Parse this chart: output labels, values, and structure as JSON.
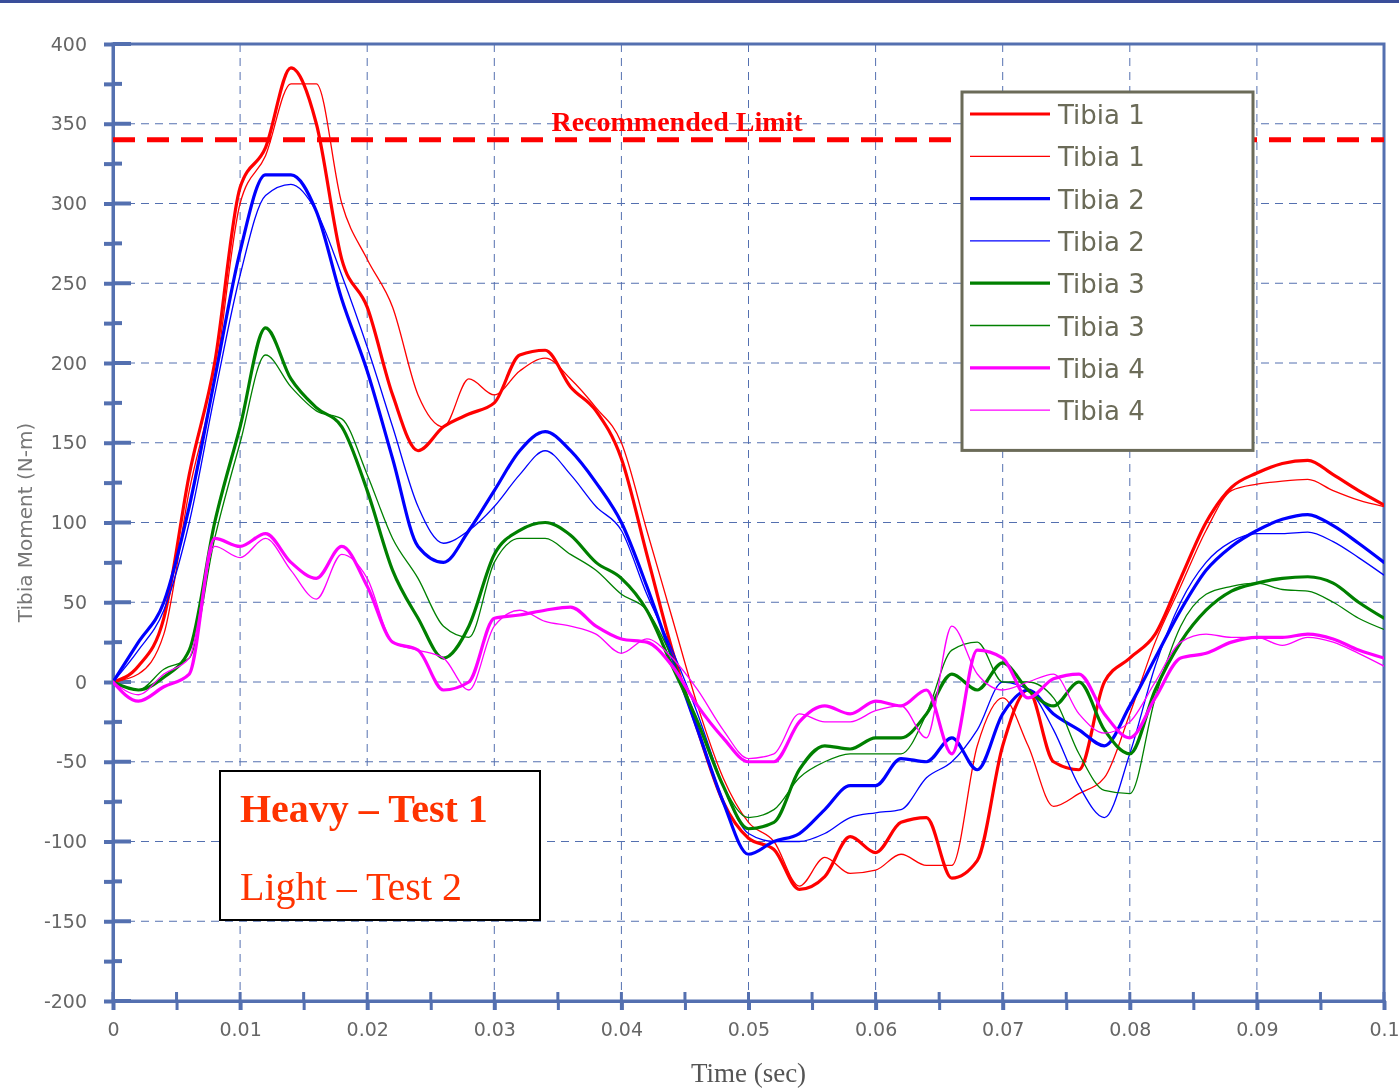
{
  "chart_data": {
    "type": "line",
    "xlabel": "Time (sec)",
    "ylabel": "Tibia Moment (N-m)",
    "x": [
      0,
      0.002,
      0.004,
      0.006,
      0.008,
      0.01,
      0.012,
      0.014,
      0.016,
      0.018,
      0.02,
      0.022,
      0.024,
      0.026,
      0.028,
      0.03,
      0.032,
      0.034,
      0.036,
      0.038,
      0.04,
      0.042,
      0.044,
      0.046,
      0.048,
      0.05,
      0.052,
      0.054,
      0.056,
      0.058,
      0.06,
      0.062,
      0.064,
      0.066,
      0.068,
      0.07,
      0.072,
      0.074,
      0.076,
      0.078,
      0.08,
      0.082,
      0.084,
      0.086,
      0.088,
      0.09,
      0.092,
      0.094,
      0.096,
      0.098,
      0.1
    ],
    "series": [
      {
        "name": "Tibia 1",
        "color": "#ff0000",
        "values": [
          0,
          10,
          40,
          130,
          200,
          310,
          335,
          385,
          350,
          265,
          235,
          180,
          145,
          160,
          168,
          175,
          205,
          208,
          185,
          170,
          140,
          80,
          20,
          -30,
          -75,
          -98,
          -105,
          -130,
          -122,
          -97,
          -107,
          -88,
          -85,
          -123,
          -112,
          -40,
          -5,
          -50,
          -55,
          0,
          15,
          30,
          65,
          100,
          122,
          131,
          137,
          139,
          130,
          120,
          111
        ]
      },
      {
        "name": "Tibia 1",
        "color": "#ff0000",
        "values": [
          0,
          5,
          30,
          120,
          190,
          300,
          330,
          375,
          375,
          300,
          265,
          235,
          180,
          160,
          190,
          180,
          195,
          203,
          190,
          172,
          150,
          95,
          40,
          -15,
          -60,
          -88,
          -100,
          -128,
          -110,
          -120,
          -118,
          -108,
          -115,
          -115,
          -40,
          -10,
          -40,
          -78,
          -70,
          -60,
          -20,
          25,
          60,
          95,
          120,
          124,
          126,
          127,
          120,
          114,
          110
        ]
      },
      {
        "name": "Tibia 2",
        "color": "#0000ff",
        "values": [
          0,
          25,
          50,
          110,
          190,
          270,
          318,
          318,
          295,
          240,
          195,
          140,
          85,
          75,
          95,
          120,
          145,
          157,
          145,
          125,
          100,
          60,
          15,
          -30,
          -75,
          -108,
          -100,
          -95,
          -80,
          -65,
          -65,
          -48,
          -50,
          -35,
          -55,
          -20,
          -5,
          -20,
          -30,
          -40,
          -15,
          15,
          45,
          70,
          85,
          95,
          102,
          105,
          98,
          87,
          75
        ]
      },
      {
        "name": "Tibia 2",
        "color": "#0000ff",
        "values": [
          0,
          20,
          45,
          100,
          180,
          255,
          305,
          312,
          295,
          255,
          210,
          160,
          110,
          87,
          95,
          110,
          130,
          145,
          130,
          110,
          95,
          55,
          20,
          -20,
          -65,
          -95,
          -100,
          -100,
          -95,
          -85,
          -82,
          -80,
          -60,
          -50,
          -30,
          0,
          -5,
          -30,
          -65,
          -85,
          -45,
          10,
          50,
          75,
          88,
          93,
          93,
          94,
          88,
          78,
          67
        ]
      },
      {
        "name": "Tibia 3",
        "color": "#008000",
        "values": [
          0,
          -5,
          3,
          20,
          100,
          160,
          222,
          190,
          172,
          160,
          120,
          70,
          40,
          15,
          35,
          80,
          95,
          100,
          92,
          75,
          65,
          45,
          10,
          -25,
          -65,
          -92,
          -88,
          -55,
          -40,
          -42,
          -35,
          -35,
          -20,
          5,
          -5,
          12,
          -5,
          -15,
          0,
          -30,
          -45,
          -5,
          25,
          45,
          57,
          62,
          65,
          66,
          62,
          50,
          40
        ]
      },
      {
        "name": "Tibia 3",
        "color": "#008000",
        "values": [
          0,
          -5,
          8,
          15,
          90,
          150,
          205,
          185,
          170,
          165,
          130,
          90,
          65,
          35,
          28,
          75,
          90,
          90,
          80,
          70,
          55,
          45,
          15,
          -25,
          -65,
          -85,
          -80,
          -60,
          -50,
          -45,
          -45,
          -45,
          -20,
          20,
          25,
          0,
          0,
          -10,
          -45,
          -68,
          -70,
          -10,
          35,
          55,
          60,
          62,
          58,
          57,
          50,
          40,
          33
        ]
      },
      {
        "name": "Tibia 4",
        "color": "#ff00ff",
        "values": [
          0,
          -12,
          -3,
          5,
          90,
          85,
          93,
          75,
          65,
          85,
          60,
          25,
          20,
          -5,
          0,
          40,
          42,
          45,
          47,
          35,
          27,
          25,
          10,
          -15,
          -35,
          -50,
          -50,
          -25,
          -15,
          -20,
          -12,
          -15,
          -5,
          -45,
          20,
          15,
          -10,
          2,
          5,
          -20,
          -35,
          -10,
          15,
          18,
          25,
          28,
          28,
          30,
          27,
          20,
          15
        ]
      },
      {
        "name": "Tibia 4",
        "color": "#ff00ff",
        "values": [
          0,
          -8,
          5,
          15,
          85,
          78,
          90,
          70,
          52,
          80,
          65,
          25,
          20,
          15,
          -5,
          35,
          45,
          38,
          35,
          30,
          18,
          27,
          15,
          -5,
          -30,
          -48,
          -45,
          -20,
          -25,
          -25,
          -18,
          -15,
          -35,
          35,
          5,
          -5,
          0,
          5,
          -20,
          -32,
          -25,
          0,
          25,
          30,
          28,
          28,
          23,
          28,
          25,
          18,
          10
        ]
      }
    ],
    "xlim": [
      0,
      0.1
    ],
    "xticks": [
      0,
      {
        "value": 0.005,
        "label": null
      },
      0.01,
      {
        "value": 0.015,
        "label": null
      },
      0.02,
      {
        "value": 0.025,
        "label": null
      },
      0.03,
      {
        "value": 0.035,
        "label": null
      },
      0.04,
      {
        "value": 0.045,
        "label": null
      },
      0.05,
      {
        "value": 0.055,
        "label": null
      },
      0.06,
      {
        "value": 0.065,
        "label": null
      },
      0.07,
      {
        "value": 0.075,
        "label": null
      },
      0.08,
      {
        "value": 0.085,
        "label": null
      },
      0.09,
      {
        "value": 0.095,
        "label": null
      },
      0.1
    ],
    "ylim": [
      -200,
      400
    ],
    "yticks": [
      -200,
      {
        "value": -175,
        "label": null
      },
      -150,
      {
        "value": -125,
        "label": null
      },
      -100,
      {
        "value": -75,
        "label": null
      },
      -50,
      {
        "value": -25,
        "label": null
      },
      0,
      {
        "value": 25,
        "label": null
      },
      50,
      {
        "value": 75,
        "label": null
      },
      100,
      {
        "value": 125,
        "label": null
      },
      150,
      {
        "value": 175,
        "label": null
      },
      200,
      {
        "value": 225,
        "label": null
      },
      250,
      {
        "value": 275,
        "label": null
      },
      300,
      {
        "value": 325,
        "label": null
      },
      350,
      {
        "value": 375,
        "label": null
      },
      400
    ],
    "ref_lines": [
      {
        "axis": "y",
        "value": 340,
        "label": "Recommended Limit",
        "color": "#ff0000",
        "line_style": "dashed"
      }
    ],
    "annotations": [
      "Heavy – Test 1",
      "Light – Test 2"
    ],
    "grid": true,
    "legend": "top right",
    "marker": "none",
    "line_style": "solid"
  }
}
